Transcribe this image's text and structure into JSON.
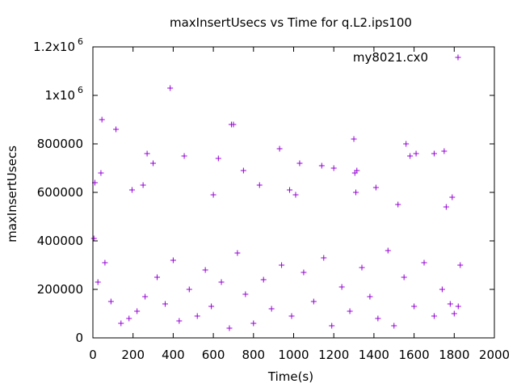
{
  "chart_data": {
    "type": "scatter",
    "title": "maxInsertUsecs vs Time for q.L2.ips100",
    "xlabel": "Time(s)",
    "ylabel": "maxInsertUsecs",
    "xlim": [
      0,
      2000
    ],
    "ylim": [
      0,
      1200000
    ],
    "x_ticks": [
      {
        "value": 0,
        "label": "0"
      },
      {
        "value": 200,
        "label": "200"
      },
      {
        "value": 400,
        "label": "400"
      },
      {
        "value": 600,
        "label": "600"
      },
      {
        "value": 800,
        "label": "800"
      },
      {
        "value": 1000,
        "label": "1000"
      },
      {
        "value": 1200,
        "label": "1200"
      },
      {
        "value": 1400,
        "label": "1400"
      },
      {
        "value": 1600,
        "label": "1600"
      },
      {
        "value": 1800,
        "label": "1800"
      },
      {
        "value": 2000,
        "label": "2000"
      }
    ],
    "y_ticks": [
      {
        "value": 0,
        "label": "0"
      },
      {
        "value": 200000,
        "label": "200000"
      },
      {
        "value": 400000,
        "label": "400000"
      },
      {
        "value": 600000,
        "label": "600000"
      },
      {
        "value": 800000,
        "label": "800000"
      },
      {
        "value": 1000000,
        "label": "1x10",
        "exp": "6"
      },
      {
        "value": 1200000,
        "label": "1.2x10",
        "exp": "6"
      }
    ],
    "legend_position": "top-right",
    "grid": false,
    "series": [
      {
        "name": "my8021.cx0",
        "color": "#9400d3",
        "marker": "plus",
        "points": [
          [
            10,
            640000
          ],
          [
            40,
            680000
          ],
          [
            45,
            900000
          ],
          [
            115,
            860000
          ],
          [
            195,
            610000
          ],
          [
            270,
            760000
          ],
          [
            300,
            720000
          ],
          [
            385,
            1030000
          ],
          [
            455,
            750000
          ],
          [
            625,
            740000
          ],
          [
            690,
            880000
          ],
          [
            700,
            880000
          ],
          [
            750,
            690000
          ],
          [
            930,
            780000
          ],
          [
            1030,
            720000
          ],
          [
            1140,
            710000
          ],
          [
            1200,
            700000
          ],
          [
            1300,
            820000
          ],
          [
            1305,
            680000
          ],
          [
            1315,
            690000
          ],
          [
            1410,
            620000
          ],
          [
            1560,
            800000
          ],
          [
            1580,
            750000
          ],
          [
            1610,
            760000
          ],
          [
            1700,
            760000
          ],
          [
            1750,
            770000
          ],
          [
            1790,
            580000
          ],
          [
            1760,
            540000
          ],
          [
            1830,
            300000
          ],
          [
            1820,
            130000
          ],
          [
            1800,
            100000
          ],
          [
            250,
            630000
          ],
          [
            600,
            590000
          ],
          [
            830,
            630000
          ],
          [
            980,
            610000
          ],
          [
            1010,
            590000
          ],
          [
            1310,
            600000
          ],
          [
            1520,
            550000
          ],
          [
            5,
            410000
          ],
          [
            25,
            230000
          ],
          [
            60,
            310000
          ],
          [
            90,
            150000
          ],
          [
            140,
            60000
          ],
          [
            180,
            80000
          ],
          [
            220,
            110000
          ],
          [
            260,
            170000
          ],
          [
            320,
            250000
          ],
          [
            360,
            140000
          ],
          [
            400,
            320000
          ],
          [
            430,
            70000
          ],
          [
            480,
            200000
          ],
          [
            520,
            90000
          ],
          [
            560,
            280000
          ],
          [
            590,
            130000
          ],
          [
            640,
            230000
          ],
          [
            680,
            40000
          ],
          [
            720,
            350000
          ],
          [
            760,
            180000
          ],
          [
            800,
            60000
          ],
          [
            850,
            240000
          ],
          [
            890,
            120000
          ],
          [
            940,
            300000
          ],
          [
            990,
            90000
          ],
          [
            1050,
            270000
          ],
          [
            1100,
            150000
          ],
          [
            1150,
            330000
          ],
          [
            1190,
            50000
          ],
          [
            1240,
            210000
          ],
          [
            1280,
            110000
          ],
          [
            1340,
            290000
          ],
          [
            1380,
            170000
          ],
          [
            1420,
            80000
          ],
          [
            1470,
            360000
          ],
          [
            1500,
            50000
          ],
          [
            1550,
            250000
          ],
          [
            1600,
            130000
          ],
          [
            1650,
            310000
          ],
          [
            1700,
            90000
          ],
          [
            1740,
            200000
          ],
          [
            1780,
            140000
          ]
        ]
      }
    ]
  }
}
